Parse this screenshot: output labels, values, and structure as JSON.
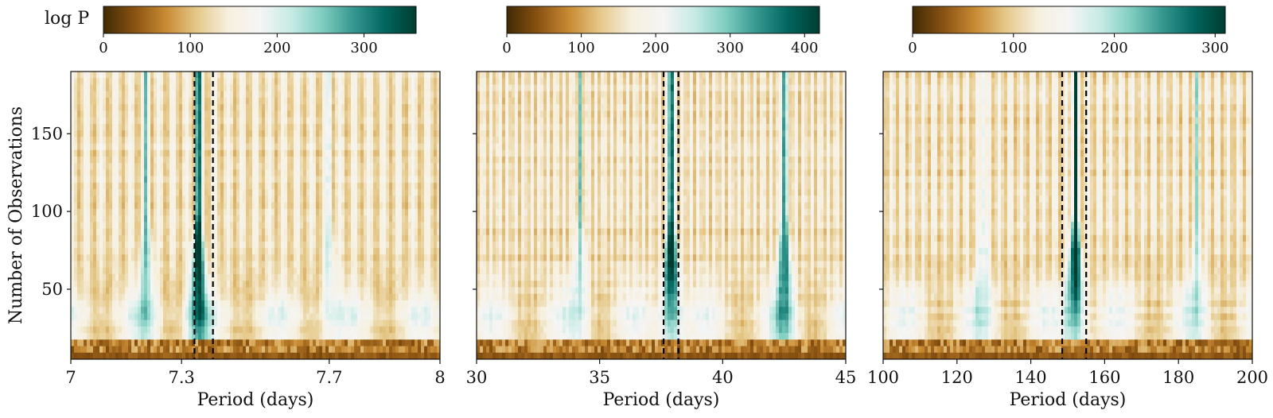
{
  "colorbar_label": "log P",
  "colormap": [
    "#3f2a04",
    "#8a5212",
    "#c88b33",
    "#e6c98a",
    "#f6f0df",
    "#f5f5f5",
    "#c7ebe5",
    "#7fcdc0",
    "#35978f",
    "#01665e",
    "#003c30"
  ],
  "chart_data": [
    {
      "type": "heatmap",
      "xlabel": "Period (days)",
      "ylabel": "Number of Observations",
      "xlim": [
        7,
        8
      ],
      "ylim": [
        5,
        190
      ],
      "xticks": [
        "7",
        "7.3",
        "7.7",
        "8"
      ],
      "yticks": [
        "50",
        "100",
        "150"
      ],
      "colorbar": {
        "range": [
          0,
          360
        ],
        "ticks": [
          "0",
          "100",
          "200",
          "300"
        ]
      },
      "marked_periods": [
        7.335,
        7.385
      ],
      "peak_periods": [
        7.205,
        7.345,
        7.7
      ],
      "peak_strength": [
        0.45,
        0.95,
        0.3
      ],
      "stripe_count": 90
    },
    {
      "type": "heatmap",
      "xlabel": "Period (days)",
      "ylabel": "",
      "xlim": [
        30,
        45
      ],
      "ylim": [
        5,
        190
      ],
      "xticks": [
        "30",
        "35",
        "40",
        "45"
      ],
      "yticks": [],
      "colorbar": {
        "range": [
          0,
          420
        ],
        "ticks": [
          "0",
          "100",
          "200",
          "300",
          "400"
        ]
      },
      "marked_periods": [
        37.6,
        38.2
      ],
      "peak_periods": [
        37.9,
        42.5,
        34.2
      ],
      "peak_strength": [
        1.0,
        0.7,
        0.35
      ],
      "stripe_count": 70
    },
    {
      "type": "heatmap",
      "xlabel": "Period (days)",
      "ylabel": "",
      "xlim": [
        100,
        200
      ],
      "ylim": [
        5,
        190
      ],
      "xticks": [
        "100",
        "120",
        "140",
        "160",
        "180",
        "200"
      ],
      "yticks": [],
      "colorbar": {
        "range": [
          0,
          310
        ],
        "ticks": [
          "0",
          "100",
          "200",
          "300"
        ]
      },
      "marked_periods": [
        148.5,
        155
      ],
      "peak_periods": [
        152,
        127,
        185
      ],
      "peak_strength": [
        1.0,
        0.3,
        0.3
      ],
      "stripe_count": 34
    }
  ]
}
